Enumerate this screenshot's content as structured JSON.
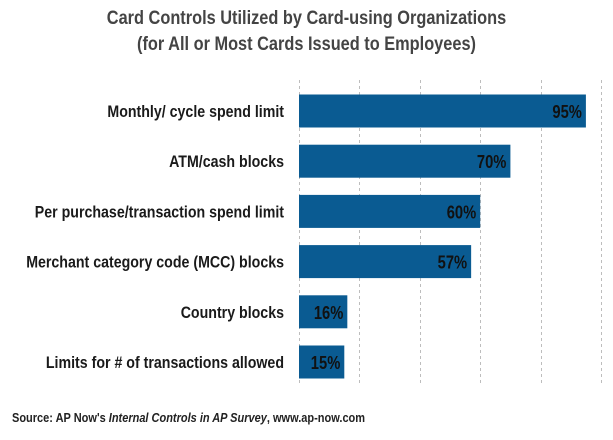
{
  "chart_data": {
    "type": "bar",
    "orientation": "horizontal",
    "title": "Card Controls Utilized by Card-using Organizations",
    "subtitle": "(for All or Most Cards Issued to Employees)",
    "categories": [
      "Monthly/ cycle spend limit",
      "ATM/cash blocks",
      "Per purchase/transaction spend limit",
      "Merchant category code (MCC) blocks",
      "Country blocks",
      "Limits for # of transactions allowed"
    ],
    "values": [
      95,
      70,
      60,
      57,
      16,
      15
    ],
    "value_labels": [
      "95%",
      "70%",
      "60%",
      "57%",
      "16%",
      "15%"
    ],
    "xlim": [
      0,
      100
    ],
    "grid": "vertical dashed",
    "bar_color": "#0a5b92",
    "xlabel": "",
    "ylabel": ""
  },
  "source": {
    "prefix": "Source: AP Now's ",
    "italic": "Internal Controls in AP Survey",
    "suffix": ", www.ap-now.com"
  }
}
